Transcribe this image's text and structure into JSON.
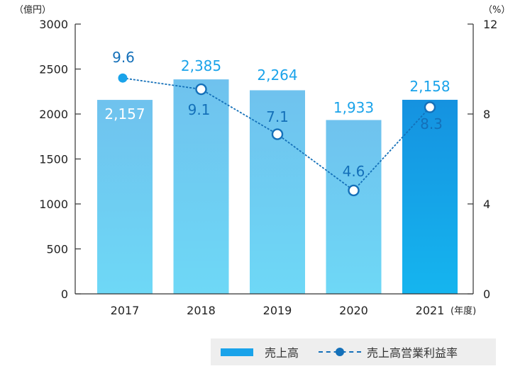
{
  "chart_data": {
    "type": "bar",
    "categories": [
      "2017",
      "2018",
      "2019",
      "2020",
      "2021"
    ],
    "x_unit": "(年度)",
    "y_left_unit": "（億円）",
    "y_right_unit": "（%）",
    "y_left_ticks": [
      "3000",
      "2500",
      "2000",
      "1500",
      "1000",
      "500",
      "0"
    ],
    "y_left_range": [
      0,
      3000
    ],
    "y_right_ticks": [
      "12",
      "8",
      "4",
      "0"
    ],
    "y_right_range": [
      0,
      12
    ],
    "series": [
      {
        "name": "売上高",
        "kind": "bar",
        "axis": "left",
        "values": [
          2157,
          2385,
          2264,
          1933,
          2158
        ],
        "labels": [
          "2,157",
          "2,385",
          "2,264",
          "1,933",
          "2,158"
        ]
      },
      {
        "name": "売上高営業利益率",
        "kind": "line",
        "axis": "right",
        "values": [
          9.6,
          9.1,
          7.1,
          4.6,
          8.3
        ],
        "labels": [
          "9.6",
          "9.1",
          "7.1",
          "4.6",
          "8.3"
        ]
      }
    ],
    "colors": {
      "bar_top": "#6fc2ee",
      "bar_bottom": "#6ed8f6",
      "bar_highlight_top": "#1592e0",
      "bar_highlight_bottom": "#15b5ef",
      "line": "#1470b9",
      "value_label": "#1aa3ea",
      "ratio_label": "#1470b9",
      "axis": "#333333"
    },
    "grid": false,
    "legend_position": "bottom-right"
  },
  "legend": {
    "bar_label": "売上高",
    "line_label": "売上高営業利益率"
  }
}
